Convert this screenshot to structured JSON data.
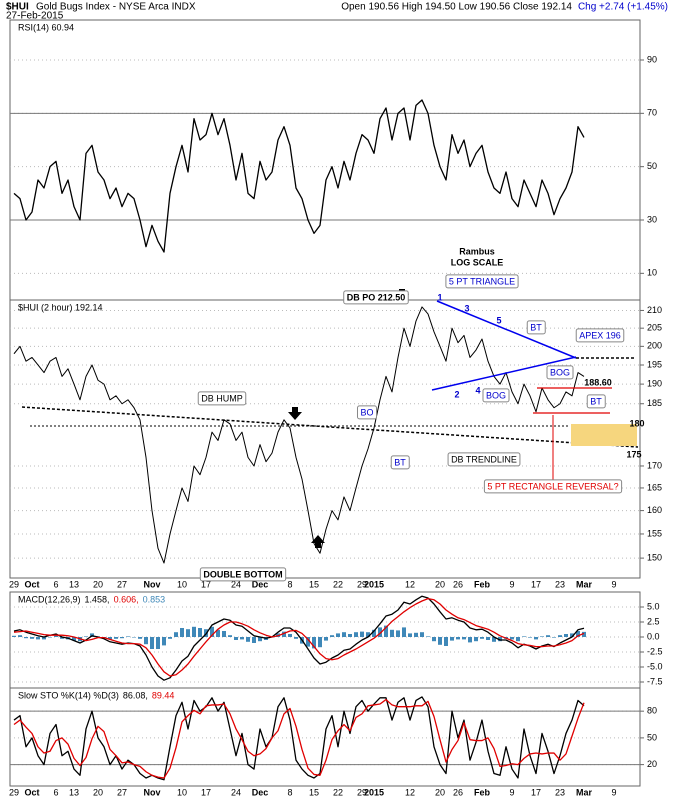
{
  "header": {
    "symbol": "$HUI",
    "name": "Gold Bugs Index - NYSE Arca INDX",
    "date": "27-Feb-2015",
    "quote": "Open 190.56  High 194.50  Low 190.56  Close 192.14",
    "change": "Chg +2.74 (+1.45%)"
  },
  "chart_data": [
    {
      "type": "line",
      "title": "RSI(14) 60.94",
      "color": "#000000",
      "ylim": [
        0,
        105
      ],
      "yticks": [
        10,
        30,
        50,
        70,
        90
      ],
      "levels": [
        30,
        70
      ],
      "grid": true,
      "values": [
        40,
        38,
        30,
        33,
        45,
        42,
        50,
        52,
        40,
        45,
        35,
        30,
        55,
        58,
        48,
        45,
        38,
        42,
        35,
        40,
        38,
        30,
        20,
        28,
        22,
        18,
        40,
        50,
        58,
        48,
        68,
        60,
        62,
        70,
        62,
        68,
        58,
        45,
        55,
        40,
        38,
        52,
        45,
        48,
        60,
        65,
        58,
        42,
        38,
        30,
        25,
        28,
        45,
        50,
        42,
        52,
        45,
        55,
        62,
        60,
        55,
        68,
        72,
        60,
        70,
        72,
        60,
        73,
        75,
        70,
        58,
        50,
        45,
        62,
        55,
        60,
        50,
        55,
        58,
        48,
        42,
        40,
        48,
        38,
        35,
        45,
        40,
        35,
        45,
        40,
        32,
        38,
        42,
        48,
        65,
        60.94,
        null,
        null,
        null,
        null,
        null
      ]
    },
    {
      "type": "line",
      "title": "$HUI (2 hour) 192.14",
      "color": "#000000",
      "log_scale": true,
      "ylim": [
        146,
        213
      ],
      "yticks": [
        150,
        155,
        160,
        165,
        170,
        185,
        190,
        195,
        200,
        205,
        210
      ],
      "grid": true,
      "categories": [
        "29",
        null,
        null,
        "Oct",
        null,
        null,
        null,
        "6",
        null,
        null,
        "13",
        null,
        null,
        null,
        "20",
        null,
        null,
        null,
        "27",
        null,
        null,
        null,
        null,
        "Nov",
        null,
        null,
        null,
        null,
        "10",
        null,
        null,
        null,
        "17",
        null,
        null,
        null,
        null,
        "24",
        null,
        null,
        null,
        "Dec",
        null,
        null,
        null,
        null,
        "8",
        null,
        null,
        null,
        "15",
        null,
        null,
        null,
        "22",
        null,
        null,
        null,
        "29",
        null,
        "2015",
        null,
        null,
        null,
        null,
        null,
        "12",
        null,
        null,
        null,
        null,
        "20",
        null,
        null,
        "26",
        null,
        null,
        null,
        "Feb",
        null,
        null,
        null,
        null,
        "9",
        null,
        null,
        null,
        "17",
        null,
        null,
        null,
        "23",
        null,
        null,
        null,
        "Mar",
        null,
        null,
        null,
        null,
        "9"
      ],
      "values": [
        198,
        200,
        196,
        197,
        195,
        193,
        196,
        197,
        192,
        194,
        190,
        186,
        192,
        195,
        191,
        190,
        186,
        187,
        185,
        186,
        184,
        181,
        172,
        160,
        152,
        149,
        155,
        160,
        165,
        162,
        170,
        168,
        172,
        178,
        176,
        181,
        180,
        176,
        178,
        172,
        170,
        175,
        171,
        173,
        178,
        181,
        179,
        172,
        167,
        160,
        153,
        151,
        156,
        160,
        158,
        163,
        160,
        165,
        170,
        174,
        179,
        186,
        192,
        188,
        197,
        205,
        200,
        207,
        211,
        209,
        204,
        200,
        196,
        205,
        201,
        203,
        197,
        199,
        202,
        196,
        192,
        190,
        193,
        188,
        185,
        190,
        187,
        183,
        189,
        186,
        184,
        185,
        188,
        187,
        193,
        192,
        null,
        null,
        null,
        null,
        null
      ],
      "annotations": [
        "Rambus",
        "LOG SCALE",
        "DB PO 212.50",
        "5 PT TRIANGLE",
        "1",
        "3",
        "5",
        "2",
        "4",
        "BT",
        "APEX 196",
        "BOG",
        "188.60",
        "BOG",
        "BT",
        "BO",
        "BT",
        "DB HUMP",
        "180",
        "175",
        "DB TRENDLINE",
        "5 PT RECTANGLE REVERSAL?",
        "DOUBLE BOTTOM"
      ]
    },
    {
      "type": "line",
      "title": "MACD(12,26,9)",
      "ylim": [
        -8.5,
        7.5
      ],
      "yticks": [
        {
          "value": 5,
          "label": "5.0"
        },
        2.5,
        {
          "value": 0,
          "label": "0.0"
        },
        -2.5,
        {
          "value": -5,
          "label": "-5.0"
        },
        -7.5
      ],
      "grid": true,
      "series": [
        {
          "name": "0.853",
          "kind": "bar",
          "color": "#3f88b8",
          "values": [
            0.2,
            0.3,
            -0.2,
            -0.3,
            -0.4,
            -0.4,
            0.0,
            0.2,
            -0.3,
            -0.4,
            -0.6,
            -0.7,
            0.1,
            0.6,
            0.1,
            -0.2,
            -0.4,
            -0.3,
            -0.2,
            0.1,
            0.0,
            -0.3,
            -1.2,
            -2.0,
            -2.0,
            -1.4,
            -0.3,
            0.8,
            1.5,
            1.3,
            1.7,
            1.5,
            1.3,
            1.7,
            1.2,
            1.0,
            0.3,
            -0.5,
            -0.4,
            -0.8,
            -1.0,
            -0.7,
            -0.5,
            0.0,
            0.6,
            0.9,
            0.5,
            -0.3,
            -1.1,
            -1.6,
            -1.9,
            -1.7,
            -0.6,
            0.3,
            0.6,
            0.8,
            0.5,
            0.8,
            0.9,
            0.8,
            1.2,
            1.6,
            1.9,
            1.2,
            1.1,
            1.6,
            0.6,
            0.7,
            0.8,
            0.1,
            -0.7,
            -1.3,
            -1.5,
            -0.6,
            -0.4,
            -0.4,
            -0.9,
            -0.7,
            -0.3,
            -0.5,
            -0.8,
            -0.7,
            -0.3,
            -0.4,
            -0.7,
            0.1,
            -0.1,
            -0.4,
            0.1,
            0.3,
            -0.1,
            0.3,
            0.5,
            0.6,
            1.0,
            0.853,
            null,
            null,
            null,
            null,
            null
          ]
        },
        {
          "name": "1.458,",
          "color": "#000000",
          "values": [
            1.0,
            1.2,
            0.8,
            0.5,
            0.2,
            0.0,
            0.3,
            0.5,
            0.0,
            -0.2,
            -0.6,
            -1.0,
            -0.5,
            0.2,
            0.0,
            -0.3,
            -0.8,
            -1.0,
            -1.2,
            -1.0,
            -1.1,
            -1.5,
            -3.0,
            -5.0,
            -6.5,
            -7.2,
            -6.8,
            -5.5,
            -4.0,
            -3.2,
            -1.5,
            -0.5,
            0.5,
            2.0,
            2.5,
            3.0,
            2.8,
            2.0,
            1.8,
            1.0,
            0.2,
            0.0,
            -0.2,
            0.0,
            0.8,
            1.5,
            1.5,
            0.8,
            -0.5,
            -2.0,
            -3.5,
            -4.5,
            -4.2,
            -3.5,
            -3.0,
            -2.2,
            -2.0,
            -1.2,
            -0.5,
            0.0,
            1.0,
            2.2,
            3.5,
            3.8,
            4.5,
            5.8,
            5.5,
            6.2,
            6.8,
            6.5,
            5.5,
            4.2,
            3.0,
            3.2,
            2.8,
            2.5,
            1.5,
            1.2,
            1.3,
            0.8,
            0.0,
            -0.5,
            -0.5,
            -1.0,
            -1.8,
            -1.2,
            -1.5,
            -2.0,
            -1.5,
            -1.2,
            -1.6,
            -1.0,
            -0.5,
            0.0,
            1.2,
            1.458,
            null,
            null,
            null,
            null,
            null
          ]
        },
        {
          "name": "0.606,",
          "color": "#e00000",
          "values": [
            0.8,
            0.9,
            1.0,
            0.8,
            0.6,
            0.4,
            0.3,
            0.3,
            0.3,
            0.2,
            0.0,
            -0.3,
            -0.6,
            -0.4,
            -0.1,
            -0.1,
            -0.4,
            -0.7,
            -1.0,
            -1.1,
            -1.1,
            -1.2,
            -1.8,
            -3.0,
            -4.5,
            -5.8,
            -6.5,
            -6.3,
            -5.5,
            -4.5,
            -3.2,
            -2.0,
            -0.8,
            0.3,
            1.3,
            2.0,
            2.5,
            2.5,
            2.2,
            1.8,
            1.2,
            0.7,
            0.3,
            0.0,
            0.2,
            0.6,
            1.0,
            1.1,
            0.6,
            -0.4,
            -1.6,
            -2.8,
            -3.6,
            -3.8,
            -3.6,
            -3.0,
            -2.5,
            -2.0,
            -1.4,
            -0.8,
            -0.2,
            0.6,
            1.6,
            2.6,
            3.4,
            4.2,
            4.9,
            5.5,
            6.0,
            6.4,
            6.2,
            5.5,
            4.5,
            3.8,
            3.2,
            2.9,
            2.4,
            1.9,
            1.6,
            1.3,
            0.8,
            0.2,
            -0.2,
            -0.6,
            -1.1,
            -1.3,
            -1.4,
            -1.6,
            -1.6,
            -1.5,
            -1.5,
            -1.3,
            -1.0,
            -0.6,
            0.2,
            0.606,
            null,
            null,
            null,
            null,
            null
          ]
        }
      ]
    },
    {
      "type": "line",
      "title": "Slow STO %K(14) %D(3)",
      "ylim": [
        -4,
        106
      ],
      "yticks": [
        20,
        50,
        80
      ],
      "levels": [
        20,
        80
      ],
      "grid": true,
      "series": [
        {
          "name": "86.08,",
          "color": "#000000",
          "values": [
            70,
            75,
            40,
            50,
            30,
            20,
            55,
            65,
            30,
            35,
            15,
            8,
            60,
            80,
            50,
            40,
            20,
            30,
            15,
            25,
            20,
            10,
            5,
            8,
            5,
            3,
            40,
            75,
            90,
            60,
            92,
            80,
            85,
            95,
            80,
            90,
            60,
            30,
            55,
            20,
            15,
            60,
            40,
            50,
            85,
            95,
            70,
            25,
            15,
            8,
            5,
            10,
            60,
            75,
            40,
            80,
            55,
            85,
            92,
            80,
            88,
            95,
            95,
            70,
            90,
            95,
            70,
            92,
            96,
            85,
            40,
            20,
            10,
            80,
            50,
            70,
            25,
            45,
            70,
            35,
            10,
            8,
            40,
            15,
            5,
            60,
            30,
            10,
            55,
            35,
            10,
            30,
            55,
            70,
            92,
            86.08,
            null,
            null,
            null,
            null,
            null
          ]
        },
        {
          "name": "89.44",
          "color": "#e00000",
          "values": [
            65,
            70,
            62,
            55,
            40,
            33,
            35,
            47,
            50,
            43,
            27,
            19,
            28,
            49,
            63,
            57,
            37,
            30,
            22,
            23,
            20,
            18,
            12,
            8,
            6,
            5,
            16,
            39,
            68,
            75,
            81,
            77,
            86,
            87,
            87,
            88,
            77,
            60,
            48,
            35,
            30,
            32,
            38,
            50,
            58,
            77,
            83,
            63,
            37,
            16,
            9,
            8,
            25,
            48,
            58,
            65,
            58,
            73,
            77,
            86,
            87,
            88,
            93,
            87,
            85,
            85,
            85,
            86,
            86,
            91,
            74,
            48,
            23,
            37,
            47,
            67,
            48,
            47,
            47,
            50,
            38,
            18,
            19,
            21,
            20,
            27,
            32,
            33,
            32,
            33,
            33,
            25,
            32,
            52,
            72,
            89.44,
            null,
            null,
            null,
            null,
            null
          ]
        }
      ]
    }
  ]
}
